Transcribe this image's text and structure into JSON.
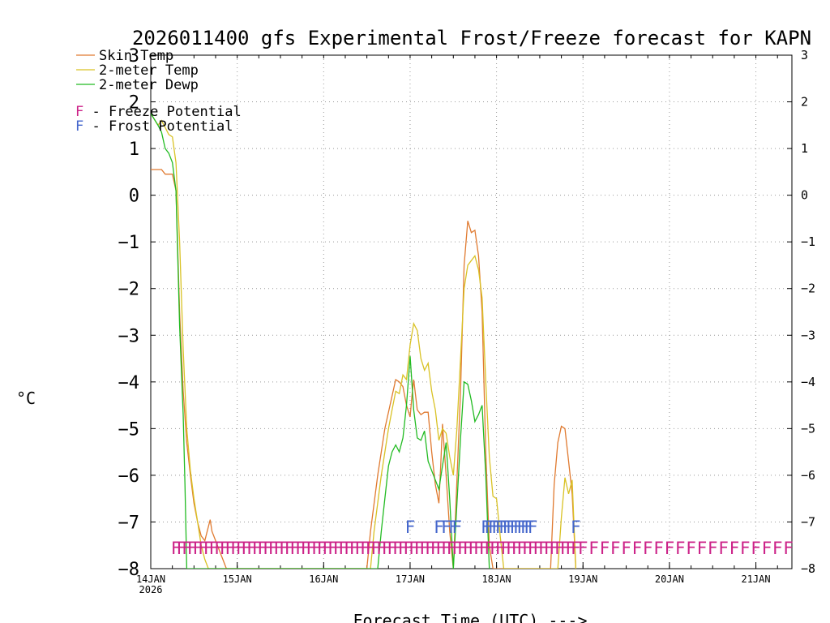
{
  "chart_data": {
    "type": "line",
    "title": "2026011400 gfs Experimental Frost/Freeze forecast for KAPN",
    "xlabel": "Forecast Time (UTC) --->",
    "ylabel": "°C",
    "ylim": [
      -8,
      3
    ],
    "xlim_hours": [
      0,
      178
    ],
    "grid": true,
    "x_ticks": [
      {
        "h": 0,
        "label": "14JAN",
        "sub": "2026"
      },
      {
        "h": 24,
        "label": "15JAN"
      },
      {
        "h": 48,
        "label": "16JAN"
      },
      {
        "h": 72,
        "label": "17JAN"
      },
      {
        "h": 96,
        "label": "18JAN"
      },
      {
        "h": 120,
        "label": "19JAN"
      },
      {
        "h": 144,
        "label": "20JAN"
      },
      {
        "h": 168,
        "label": "21JAN"
      }
    ],
    "y_ticks": [
      3,
      2,
      1,
      0,
      -1,
      -2,
      -3,
      -4,
      -5,
      -6,
      -7,
      -8
    ],
    "y_tick_labels": [
      "3",
      "2",
      "1",
      "0",
      "−1",
      "−2",
      "−3",
      "−4",
      "−5",
      "−6",
      "−7",
      "−8"
    ],
    "series": [
      {
        "name": "Skin Temp",
        "color": "#e07a30",
        "points": [
          [
            0,
            0.55
          ],
          [
            3,
            0.55
          ],
          [
            4,
            0.45
          ],
          [
            6,
            0.45
          ],
          [
            7,
            0.1
          ],
          [
            8,
            -2.5
          ],
          [
            9,
            -4.2
          ],
          [
            10,
            -5.3
          ],
          [
            11,
            -6.0
          ],
          [
            12,
            -6.6
          ],
          [
            13,
            -7.0
          ],
          [
            14,
            -7.3
          ],
          [
            15,
            -7.4
          ],
          [
            16,
            -7.1
          ],
          [
            16.5,
            -6.95
          ],
          [
            17,
            -7.2
          ],
          [
            18,
            -7.4
          ],
          [
            19,
            -7.6
          ],
          [
            20,
            -7.8
          ],
          [
            21,
            -8.0
          ],
          [
            60,
            -8.0
          ],
          [
            61,
            -7.2
          ],
          [
            63,
            -6.0
          ],
          [
            65,
            -5.0
          ],
          [
            67,
            -4.3
          ],
          [
            68,
            -3.95
          ],
          [
            69,
            -4.0
          ],
          [
            70,
            -4.1
          ],
          [
            71,
            -4.5
          ],
          [
            72,
            -4.75
          ],
          [
            72.5,
            -4.3
          ],
          [
            73,
            -3.95
          ],
          [
            74,
            -4.6
          ],
          [
            75,
            -4.7
          ],
          [
            76,
            -4.65
          ],
          [
            77,
            -4.65
          ],
          [
            78,
            -5.5
          ],
          [
            79,
            -6.2
          ],
          [
            80,
            -6.6
          ],
          [
            80.5,
            -5.8
          ],
          [
            81,
            -4.9
          ],
          [
            82,
            -6.0
          ],
          [
            83,
            -7.2
          ],
          [
            84,
            -8.0
          ],
          [
            86,
            -4.2
          ],
          [
            87,
            -1.5
          ],
          [
            88,
            -0.55
          ],
          [
            89,
            -0.8
          ],
          [
            90,
            -0.75
          ],
          [
            91,
            -1.3
          ],
          [
            92,
            -2.5
          ],
          [
            93,
            -5.5
          ],
          [
            94,
            -7.5
          ],
          [
            95,
            -8.0
          ],
          [
            111,
            -8.0
          ],
          [
            112,
            -6.2
          ],
          [
            113,
            -5.3
          ],
          [
            114,
            -4.95
          ],
          [
            115,
            -5.0
          ],
          [
            116,
            -5.7
          ],
          [
            117,
            -6.4
          ],
          [
            118,
            -8.0
          ]
        ]
      },
      {
        "name": "2-meter Temp",
        "color": "#d9c225",
        "points": [
          [
            0,
            1.75
          ],
          [
            2,
            1.5
          ],
          [
            3,
            1.6
          ],
          [
            4,
            1.45
          ],
          [
            5,
            1.3
          ],
          [
            6,
            1.25
          ],
          [
            7,
            0.7
          ],
          [
            8,
            -1.0
          ],
          [
            9,
            -3.3
          ],
          [
            10,
            -5.0
          ],
          [
            11,
            -5.9
          ],
          [
            12,
            -6.5
          ],
          [
            13,
            -7.0
          ],
          [
            14,
            -7.5
          ],
          [
            15,
            -7.8
          ],
          [
            16,
            -8.0
          ],
          [
            61,
            -8.0
          ],
          [
            62,
            -7.2
          ],
          [
            64,
            -6.0
          ],
          [
            66,
            -5.0
          ],
          [
            67,
            -4.6
          ],
          [
            68,
            -4.2
          ],
          [
            69,
            -4.25
          ],
          [
            70,
            -3.85
          ],
          [
            71,
            -3.95
          ],
          [
            72,
            -3.2
          ],
          [
            73,
            -2.75
          ],
          [
            74,
            -2.9
          ],
          [
            75,
            -3.5
          ],
          [
            76,
            -3.75
          ],
          [
            77,
            -3.6
          ],
          [
            78,
            -4.2
          ],
          [
            79,
            -4.6
          ],
          [
            80,
            -5.25
          ],
          [
            81,
            -5.0
          ],
          [
            82,
            -5.1
          ],
          [
            83,
            -5.6
          ],
          [
            84,
            -6.0
          ],
          [
            85,
            -5.0
          ],
          [
            86,
            -3.5
          ],
          [
            87,
            -2.0
          ],
          [
            88,
            -1.5
          ],
          [
            89,
            -1.4
          ],
          [
            90,
            -1.3
          ],
          [
            91,
            -1.6
          ],
          [
            92,
            -2.2
          ],
          [
            93,
            -4.0
          ],
          [
            94,
            -5.6
          ],
          [
            95,
            -6.45
          ],
          [
            96,
            -6.5
          ],
          [
            97,
            -7.3
          ],
          [
            98,
            -8.0
          ],
          [
            113,
            -8.0
          ],
          [
            114,
            -6.9
          ],
          [
            115,
            -6.05
          ],
          [
            116,
            -6.4
          ],
          [
            117,
            -6.1
          ],
          [
            118,
            -8.0
          ]
        ]
      },
      {
        "name": "2-meter Dewp",
        "color": "#22bb22",
        "points": [
          [
            0,
            1.75
          ],
          [
            2,
            1.5
          ],
          [
            3,
            1.35
          ],
          [
            4,
            1.0
          ],
          [
            5,
            0.9
          ],
          [
            6,
            0.7
          ],
          [
            7,
            0.1
          ],
          [
            8,
            -2.8
          ],
          [
            9,
            -4.7
          ],
          [
            9.5,
            -6.2
          ],
          [
            10,
            -8.0
          ],
          [
            63,
            -8.0
          ],
          [
            64,
            -7.2
          ],
          [
            65,
            -6.5
          ],
          [
            66,
            -5.8
          ],
          [
            67,
            -5.5
          ],
          [
            68,
            -5.35
          ],
          [
            69,
            -5.5
          ],
          [
            70,
            -5.2
          ],
          [
            71,
            -4.5
          ],
          [
            72,
            -3.45
          ],
          [
            73,
            -4.6
          ],
          [
            74,
            -5.2
          ],
          [
            75,
            -5.25
          ],
          [
            76,
            -5.05
          ],
          [
            77,
            -5.7
          ],
          [
            78,
            -5.9
          ],
          [
            79,
            -6.1
          ],
          [
            80,
            -6.3
          ],
          [
            81,
            -5.8
          ],
          [
            82,
            -5.3
          ],
          [
            83,
            -6.5
          ],
          [
            84,
            -8.0
          ],
          [
            86,
            -5.2
          ],
          [
            87,
            -4.0
          ],
          [
            88,
            -4.05
          ],
          [
            89,
            -4.4
          ],
          [
            90,
            -4.85
          ],
          [
            91,
            -4.7
          ],
          [
            92,
            -4.5
          ],
          [
            93,
            -6.0
          ],
          [
            94,
            -8.0
          ]
        ]
      }
    ],
    "legend": {
      "placement": "top-left",
      "series_labels": [
        "Skin Temp",
        "2-meter Temp",
        "2-meter Dewp"
      ],
      "potential_labels": [
        {
          "glyph": "F",
          "text": " - Freeze Potential",
          "color": "#cc2288"
        },
        {
          "glyph": "F",
          "text": " - Frost Potential",
          "color": "#4466cc"
        }
      ]
    },
    "freeze_potential": {
      "glyph": "F",
      "color": "#cc2288",
      "y": -7.55,
      "hours": [
        7.0,
        8.5,
        10.0,
        11.5,
        13.0,
        14.5,
        16.0,
        17.5,
        19.0,
        20.5,
        22.0,
        23.5,
        25.0,
        26.5,
        28.0,
        29.5,
        31.0,
        32.5,
        34.0,
        35.5,
        37.0,
        38.5,
        40.0,
        41.5,
        43.0,
        44.5,
        46.0,
        47.5,
        49.0,
        50.5,
        52.0,
        53.5,
        55.0,
        56.5,
        58.0,
        59.5,
        61.0,
        62.5,
        64.0,
        65.5,
        67.0,
        68.5,
        70.0,
        71.5,
        73.0,
        74.5,
        76.0,
        77.5,
        79.0,
        80.5,
        82.0,
        83.5,
        85.0,
        86.5,
        88.0,
        89.5,
        91.0,
        92.5,
        94.0,
        95.5,
        97.0,
        98.5,
        100.0,
        101.5,
        103.0,
        104.5,
        106.0,
        107.5,
        109.0,
        110.5,
        112.0,
        113.5,
        115.0,
        116.5,
        118.0,
        120,
        123,
        126,
        129,
        132,
        135,
        138,
        141,
        144,
        147,
        150,
        153,
        156,
        159,
        162,
        165,
        168,
        171,
        174,
        177
      ]
    },
    "frost_potential": {
      "glyph": "F",
      "color": "#4466cc",
      "y": -7.1,
      "hours": [
        72,
        80,
        82,
        84,
        85,
        93,
        94,
        95,
        96,
        97,
        98,
        99,
        100,
        101,
        102,
        103,
        104,
        105,
        106,
        118
      ]
    }
  }
}
